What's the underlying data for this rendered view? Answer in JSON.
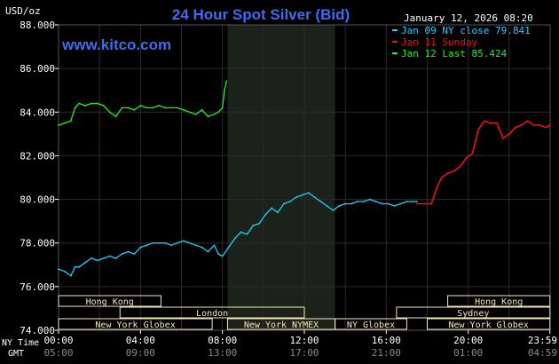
{
  "header": {
    "title": "24 Hour Spot Silver (Bid)",
    "unit": "USD/oz",
    "timestamp": "January 12, 2026 08:20",
    "watermark": "www.kitco.com"
  },
  "legend": [
    {
      "label": "Jan 09 NY close 79.841",
      "color": "#22ccff"
    },
    {
      "label": "Jan 11 Sunday",
      "color": "#ee1111"
    },
    {
      "label": "Jan 12 Last 85.424",
      "color": "#22ee22"
    }
  ],
  "time_rows": {
    "ny_label": "NY Time",
    "gmt_label": "GMT",
    "ny_ticks": [
      "00:00",
      "04:00",
      "08:00",
      "12:00",
      "16:00",
      "20:00",
      "23:59"
    ],
    "gmt_ticks": [
      "05:00",
      "09:00",
      "13:00",
      "17:00",
      "21:00",
      "01:00",
      "04:59"
    ]
  },
  "market_sessions": [
    {
      "label": "Hong Kong",
      "start": 0,
      "end": 5,
      "row": 0
    },
    {
      "label": "London",
      "start": 3,
      "end": 12,
      "row": 1
    },
    {
      "label": "New York Globex",
      "start": 0,
      "end": 7.5,
      "row": 2
    },
    {
      "label": "New York NYMEX",
      "start": 8.25,
      "end": 13.5,
      "row": 2
    },
    {
      "label": "NY Globex",
      "start": 13.5,
      "end": 17,
      "row": 2
    },
    {
      "label": "Hong Kong",
      "start": 19,
      "end": 23.99,
      "row": 0
    },
    {
      "label": "Sydney",
      "start": 16.5,
      "end": 23.99,
      "row": 1
    },
    {
      "label": "New York Globex",
      "start": 18,
      "end": 23.99,
      "row": 2
    }
  ],
  "colors": {
    "background": "#000000",
    "grid": "#2c2c2c",
    "nymex_shade": "#1a221a",
    "title": "#3d6cf0",
    "axis_text": "#ffffff",
    "session_bar": "#f5e8b8",
    "session_text": "#000000",
    "gmt_text": "#8a8a8a"
  },
  "chart_data": {
    "type": "line",
    "title": "24 Hour Spot Silver (Bid)",
    "ylabel": "USD/oz",
    "xlabel": "NY Time",
    "xlim": [
      0,
      24
    ],
    "ylim": [
      74,
      88
    ],
    "y_ticks": [
      "74.000",
      "76.000",
      "78.000",
      "80.000",
      "82.000",
      "84.000",
      "86.000",
      "88.000"
    ],
    "y_tick_values": [
      74,
      76,
      78,
      80,
      82,
      84,
      86,
      88
    ],
    "x_tick_values": [
      0,
      4,
      8,
      12,
      16,
      20,
      23.99
    ],
    "shaded_range": [
      8.25,
      13.5
    ],
    "grid": true,
    "legend_position": "top-right",
    "series": [
      {
        "name": "Jan 09 NY close 79.841",
        "color": "#22ccff",
        "x": [
          0,
          0.3,
          0.6,
          0.8,
          1.0,
          1.3,
          1.6,
          1.9,
          2.2,
          2.5,
          2.8,
          3.1,
          3.4,
          3.7,
          4.0,
          4.3,
          4.6,
          4.9,
          5.2,
          5.5,
          5.8,
          6.1,
          6.4,
          6.7,
          7.0,
          7.3,
          7.6,
          7.8,
          8.0,
          8.3,
          8.6,
          8.9,
          9.2,
          9.5,
          9.8,
          10.1,
          10.4,
          10.7,
          11.0,
          11.3,
          11.6,
          11.9,
          12.2,
          12.5,
          12.8,
          13.1,
          13.4,
          13.7,
          14.0,
          14.3,
          14.6,
          14.9,
          15.2,
          15.5,
          15.8,
          16.1,
          16.4,
          16.7,
          17.0,
          17.3,
          17.5
        ],
        "y": [
          76.8,
          76.7,
          76.5,
          76.9,
          76.9,
          77.1,
          77.3,
          77.2,
          77.3,
          77.4,
          77.3,
          77.5,
          77.6,
          77.5,
          77.8,
          77.9,
          78.0,
          78.0,
          78.0,
          77.9,
          78.0,
          78.1,
          78.0,
          77.9,
          77.8,
          77.6,
          77.9,
          77.5,
          77.4,
          77.8,
          78.2,
          78.5,
          78.4,
          78.8,
          78.9,
          79.3,
          79.6,
          79.4,
          79.8,
          79.9,
          80.1,
          80.2,
          80.3,
          80.1,
          79.9,
          79.7,
          79.5,
          79.7,
          79.8,
          79.8,
          79.9,
          79.9,
          80.0,
          79.9,
          79.8,
          79.8,
          79.7,
          79.8,
          79.9,
          79.9,
          79.9
        ]
      },
      {
        "name": "Jan 11 Sunday",
        "color": "#ee1111",
        "x": [
          17.5,
          17.8,
          18.0,
          18.2,
          18.5,
          18.7,
          19.0,
          19.3,
          19.6,
          19.9,
          20.2,
          20.5,
          20.8,
          21.1,
          21.4,
          21.7,
          22.0,
          22.3,
          22.6,
          22.9,
          23.2,
          23.5,
          23.8,
          23.99
        ],
        "y": [
          79.8,
          79.8,
          79.8,
          79.8,
          80.6,
          81.0,
          81.2,
          81.3,
          81.5,
          81.9,
          82.1,
          83.2,
          83.6,
          83.5,
          83.5,
          82.8,
          83.0,
          83.3,
          83.4,
          83.6,
          83.4,
          83.4,
          83.3,
          83.4
        ]
      },
      {
        "name": "Jan 12 Last 85.424",
        "color": "#22ee22",
        "x": [
          0,
          0.3,
          0.6,
          0.8,
          1.0,
          1.3,
          1.6,
          1.9,
          2.2,
          2.5,
          2.8,
          3.1,
          3.4,
          3.7,
          4.0,
          4.3,
          4.6,
          4.9,
          5.2,
          5.5,
          5.8,
          6.1,
          6.4,
          6.7,
          7.0,
          7.3,
          7.6,
          7.8,
          8.0,
          8.1,
          8.2
        ],
        "y": [
          83.4,
          83.5,
          83.6,
          84.2,
          84.4,
          84.3,
          84.4,
          84.4,
          84.3,
          84.0,
          83.8,
          84.2,
          84.2,
          84.1,
          84.3,
          84.2,
          84.2,
          84.3,
          84.2,
          84.2,
          84.2,
          84.1,
          84.0,
          83.9,
          84.1,
          83.8,
          83.9,
          84.0,
          84.2,
          85.0,
          85.424
        ]
      }
    ]
  }
}
